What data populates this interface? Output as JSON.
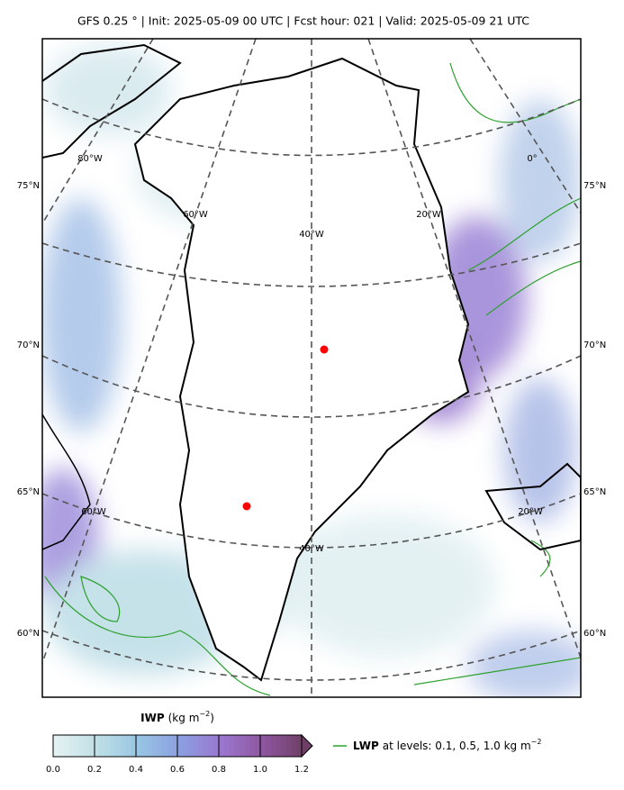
{
  "header": {
    "title": "GFS 0.25 °  |  Init: 2025-05-09 00 UTC  |  Fcst hour: 021  |  Valid: 2025-05-09 21 UTC"
  },
  "map": {
    "lat_labels_left": [
      "75°N",
      "70°N",
      "65°N",
      "60°N"
    ],
    "lat_labels_right": [
      "75°N",
      "70°N",
      "65°N",
      "60°N"
    ],
    "lon_labels": [
      "80°W",
      "60°W",
      "40°W",
      "20°W",
      "0°",
      "60°W",
      "40°W",
      "20°W"
    ]
  },
  "colorbar": {
    "label": "IWP",
    "unit": "(kg m",
    "unit_exponent": "−2",
    "unit_close": ")",
    "ticks": [
      {
        "value": 0,
        "label": "0.0"
      },
      0.2,
      0.4,
      0.6,
      0.8,
      {
        "value": 1,
        "label": "1.0"
      },
      1.2
    ],
    "colors": [
      "#e4f1f2",
      "#bfdfe6",
      "#98c5e3",
      "#8b9fe0",
      "#9a77cf",
      "#8e569f"
    ],
    "extend_color": "#6e3f64"
  },
  "legend": {
    "label": "LWP",
    "text": "at levels: 0.1, 0.5, 1.0  kg m",
    "exponent": "−2",
    "color": "#2ca02c"
  }
}
